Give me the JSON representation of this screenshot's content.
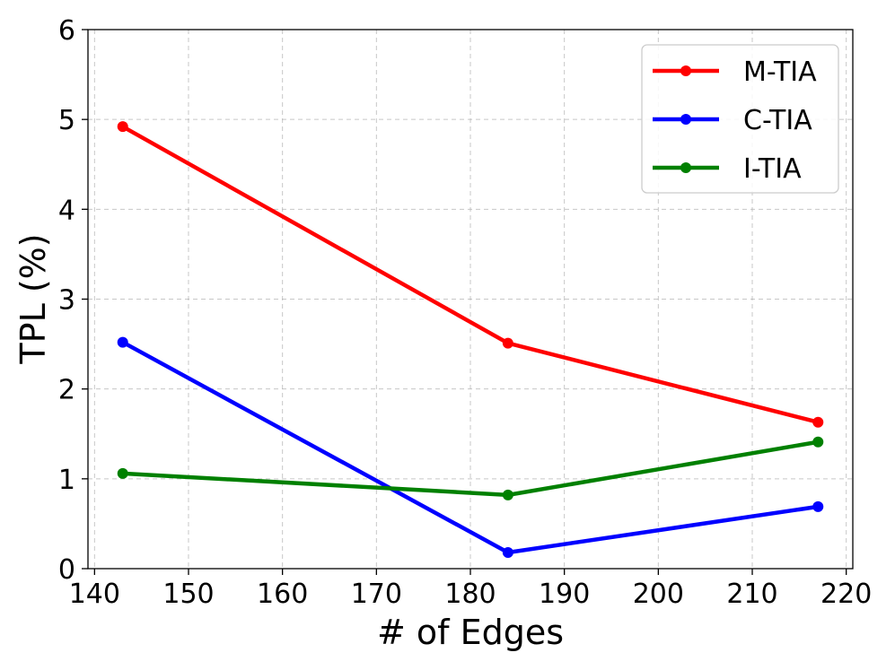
{
  "chart_data": {
    "type": "line",
    "title": "",
    "xlabel": "# of Edges",
    "ylabel": "TPL (%)",
    "x": [
      143,
      184,
      217
    ],
    "xlim": [
      139.3,
      220.7
    ],
    "ylim": [
      0,
      6
    ],
    "xticks": [
      140,
      150,
      160,
      170,
      180,
      190,
      200,
      210,
      220
    ],
    "yticks": [
      0,
      1,
      2,
      3,
      4,
      5,
      6
    ],
    "grid": true,
    "legend_position": "top-right",
    "series": [
      {
        "name": "M-TIA",
        "color": "#ff0000",
        "values": [
          4.92,
          2.51,
          1.63
        ]
      },
      {
        "name": "C-TIA",
        "color": "#0000ff",
        "values": [
          2.52,
          0.18,
          0.69
        ]
      },
      {
        "name": "I-TIA",
        "color": "#008000",
        "values": [
          1.06,
          0.82,
          1.41
        ]
      }
    ]
  }
}
